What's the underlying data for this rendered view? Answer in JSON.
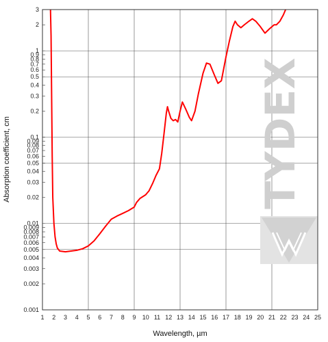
{
  "chart_data": {
    "type": "line",
    "xlabel": "Wavelength, µm",
    "ylabel": "Absorption coefficient, cm",
    "xlim": [
      1,
      25
    ],
    "ylim": [
      0.001,
      3
    ],
    "y_scale": "log",
    "grid": true,
    "x_ticks": [
      "1",
      "2",
      "3",
      "4",
      "5",
      "6",
      "7",
      "8",
      "9",
      "10",
      "11",
      "12",
      "13",
      "14",
      "15",
      "16",
      "17",
      "18",
      "19",
      "20",
      "21",
      "22",
      "23",
      "24",
      "25"
    ],
    "y_ticks": [
      {
        "value": 0.001,
        "label": "0.001"
      },
      {
        "value": 0.002,
        "label": "0.002"
      },
      {
        "value": 0.003,
        "label": "0.003"
      },
      {
        "value": 0.004,
        "label": "0.004"
      },
      {
        "value": 0.005,
        "label": "0.005"
      },
      {
        "value": 0.006,
        "label": "0.006"
      },
      {
        "value": 0.007,
        "label": "0.007"
      },
      {
        "value": 0.008,
        "label": "0.008"
      },
      {
        "value": 0.009,
        "label": "0.009"
      },
      {
        "value": 0.01,
        "label": "0.01"
      },
      {
        "value": 0.02,
        "label": "0.02"
      },
      {
        "value": 0.03,
        "label": "0.03"
      },
      {
        "value": 0.04,
        "label": "0.04"
      },
      {
        "value": 0.05,
        "label": "0.05"
      },
      {
        "value": 0.06,
        "label": "0.06"
      },
      {
        "value": 0.07,
        "label": "0.07"
      },
      {
        "value": 0.08,
        "label": "0.08"
      },
      {
        "value": 0.09,
        "label": "0.09"
      },
      {
        "value": 0.1,
        "label": "0.1"
      },
      {
        "value": 0.2,
        "label": "0.2"
      },
      {
        "value": 0.3,
        "label": "0.3"
      },
      {
        "value": 0.4,
        "label": "0.4"
      },
      {
        "value": 0.5,
        "label": "0.5"
      },
      {
        "value": 0.6,
        "label": "0.6"
      },
      {
        "value": 0.7,
        "label": "0.7"
      },
      {
        "value": 0.8,
        "label": "0.8"
      },
      {
        "value": 0.9,
        "label": "0.9"
      },
      {
        "value": 1,
        "label": "1"
      },
      {
        "value": 2,
        "label": "2"
      },
      {
        "value": 3,
        "label": "3"
      }
    ],
    "major_y_gridlines": [
      0.005,
      0.01,
      0.05,
      0.1,
      0.5,
      1
    ],
    "series": [
      {
        "color": "#ff0000",
        "x": [
          1.7,
          1.75,
          1.8,
          1.85,
          1.9,
          2.0,
          2.1,
          2.2,
          2.3,
          2.5,
          3.0,
          3.5,
          4.0,
          4.5,
          5.0,
          5.5,
          6.0,
          6.5,
          7.0,
          7.5,
          8.0,
          8.5,
          9.0,
          9.2,
          9.5,
          10.0,
          10.3,
          10.6,
          10.9,
          11.2,
          11.4,
          11.6,
          11.8,
          11.9,
          12.0,
          12.2,
          12.4,
          12.6,
          12.8,
          13.0,
          13.2,
          13.5,
          13.8,
          14.0,
          14.3,
          14.6,
          15.0,
          15.3,
          15.6,
          16.0,
          16.3,
          16.6,
          17.0,
          17.3,
          17.6,
          17.8,
          18.0,
          18.3,
          18.6,
          19.0,
          19.3,
          19.6,
          20.0,
          20.4,
          20.8,
          21.2,
          21.4,
          21.7,
          22.0,
          22.2
        ],
        "y": [
          3,
          1.5,
          0.3,
          0.06,
          0.02,
          0.01,
          0.007,
          0.0058,
          0.0052,
          0.0048,
          0.0047,
          0.0048,
          0.0049,
          0.0051,
          0.0055,
          0.0063,
          0.0076,
          0.0093,
          0.0112,
          0.0122,
          0.0131,
          0.0141,
          0.0155,
          0.0175,
          0.0195,
          0.0215,
          0.024,
          0.029,
          0.036,
          0.043,
          0.065,
          0.11,
          0.19,
          0.225,
          0.2,
          0.165,
          0.155,
          0.16,
          0.15,
          0.2,
          0.255,
          0.21,
          0.17,
          0.155,
          0.2,
          0.32,
          0.55,
          0.72,
          0.7,
          0.52,
          0.42,
          0.45,
          0.85,
          1.3,
          1.9,
          2.2,
          2.0,
          1.85,
          2.0,
          2.2,
          2.35,
          2.2,
          1.9,
          1.6,
          1.8,
          2.0,
          2.0,
          2.2,
          2.6,
          3.0
        ]
      }
    ]
  },
  "watermark": {
    "text": "TYDEX"
  }
}
